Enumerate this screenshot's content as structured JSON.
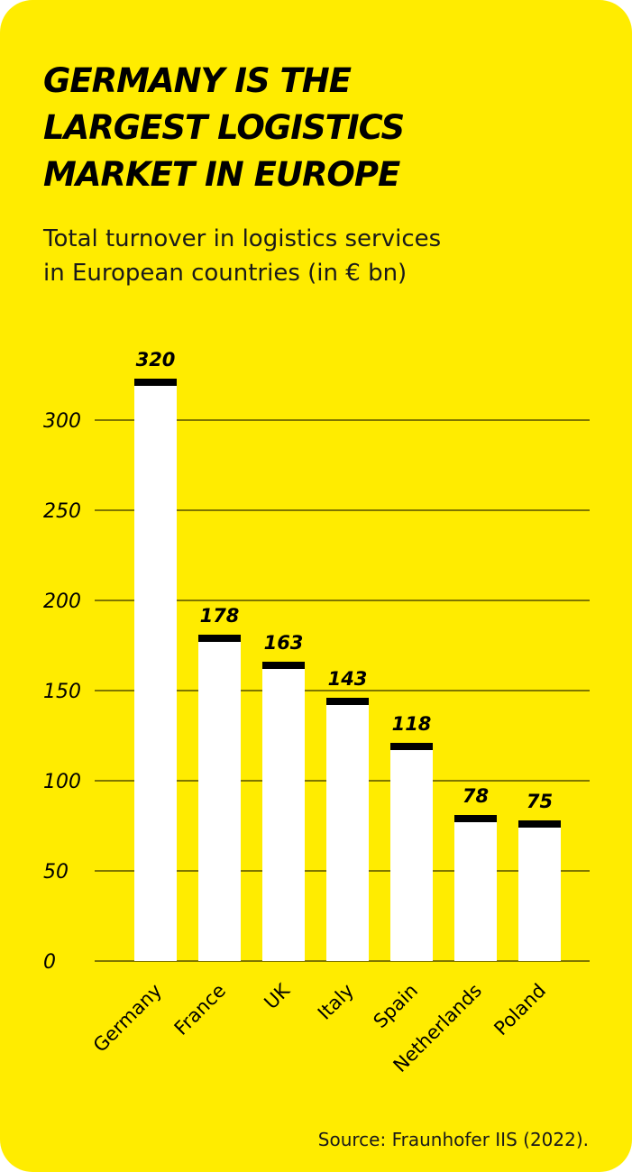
{
  "header": {
    "title": "GERMANY IS THE\nLARGEST LOGISTICS\nMARKET IN EUROPE",
    "subtitle": "Total turnover in logistics services\nin European countries (in € bn)"
  },
  "footer": {
    "source": "Source: Fraunhofer IIS (2022)."
  },
  "colors": {
    "background": "#ffec00",
    "bar": "#ffffff",
    "bar_cap": "#000000",
    "grid": "#000000",
    "text": "#000000"
  },
  "chart_data": {
    "type": "bar",
    "title": "GERMANY IS THE LARGEST LOGISTICS MARKET IN EUROPE",
    "subtitle": "Total turnover in logistics services in European countries (in € bn)",
    "categories": [
      "Germany",
      "France",
      "UK",
      "Italy",
      "Spain",
      "Netherlands",
      "Poland"
    ],
    "values": [
      320,
      178,
      163,
      143,
      118,
      78,
      75
    ],
    "data_labels": [
      "320",
      "178",
      "163",
      "143",
      "118",
      "78",
      "75"
    ],
    "yticks": [
      0,
      50,
      100,
      150,
      200,
      250,
      300
    ],
    "ytick_labels": [
      "0",
      "50",
      "100",
      "150",
      "200",
      "250",
      "300"
    ],
    "ylim": [
      0,
      320
    ],
    "xlabel": "",
    "ylabel": "",
    "grid": true,
    "legend": "none"
  }
}
